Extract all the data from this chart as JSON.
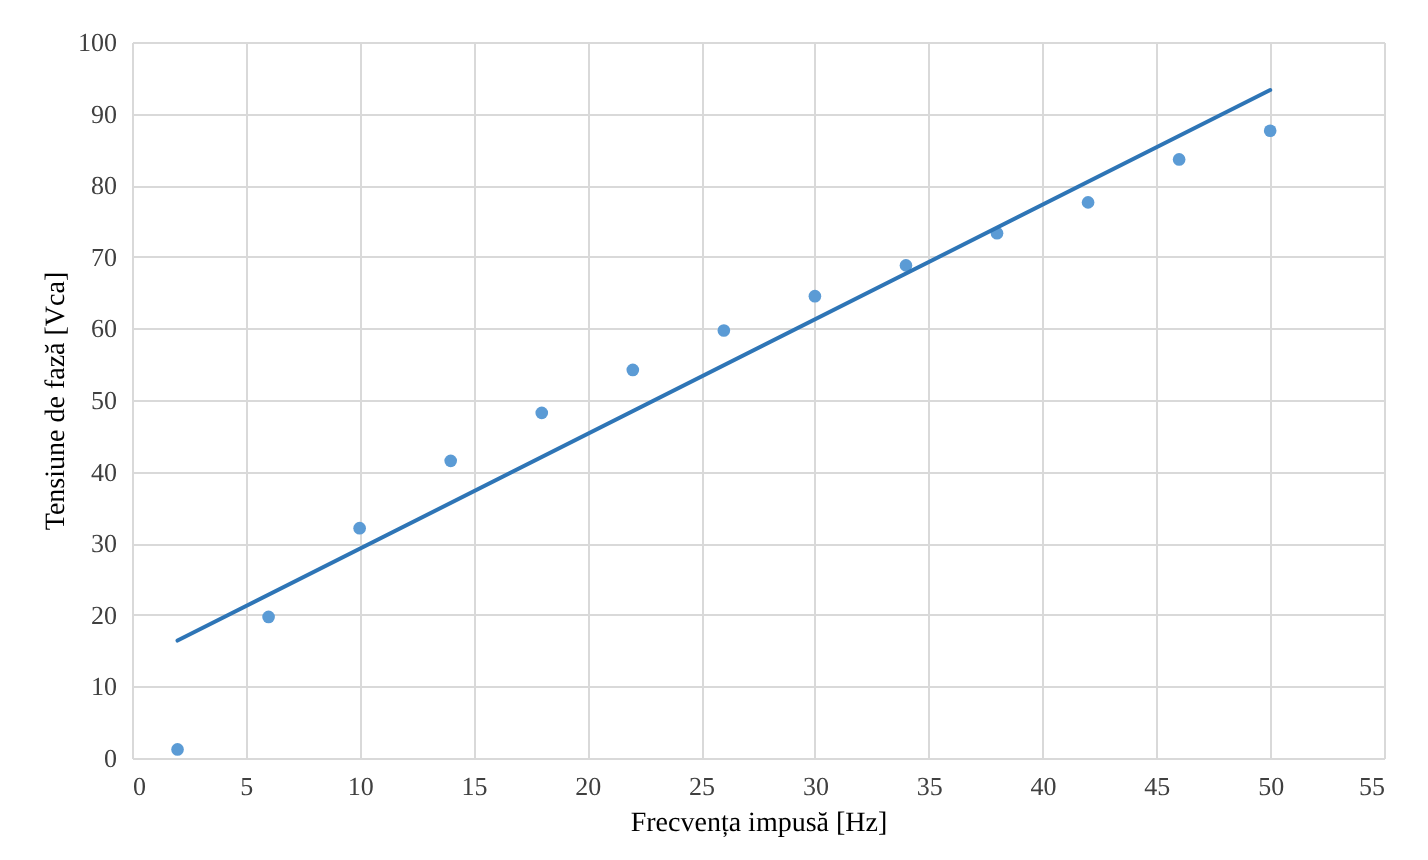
{
  "chart_data": {
    "type": "scatter",
    "xlabel": "Frecvența impusă  [Hz]",
    "ylabel": "Tensiune  de fază [Vca]",
    "x": [
      2,
      6,
      10,
      14,
      18,
      22,
      26,
      30,
      34,
      38,
      42,
      46,
      50
    ],
    "series": [
      {
        "type": "scatter",
        "marker": "circle",
        "color": "#5b9bd5",
        "values": [
          1.2,
          19.7,
          32.1,
          41.5,
          48.2,
          54.2,
          59.7,
          64.5,
          68.8,
          73.3,
          77.6,
          83.6,
          87.6
        ]
      },
      {
        "type": "line",
        "color": "#2e75b6",
        "x": [
          2,
          50
        ],
        "values": [
          16.4,
          93.3
        ]
      }
    ],
    "xlim": [
      0,
      55
    ],
    "xticks": [
      0,
      5,
      10,
      15,
      20,
      25,
      30,
      35,
      40,
      45,
      50,
      55
    ],
    "ylim": [
      0,
      100
    ],
    "yticks": [
      0,
      10,
      20,
      30,
      40,
      50,
      60,
      70,
      80,
      90,
      100
    ],
    "grid": true,
    "line_style": "solid"
  }
}
